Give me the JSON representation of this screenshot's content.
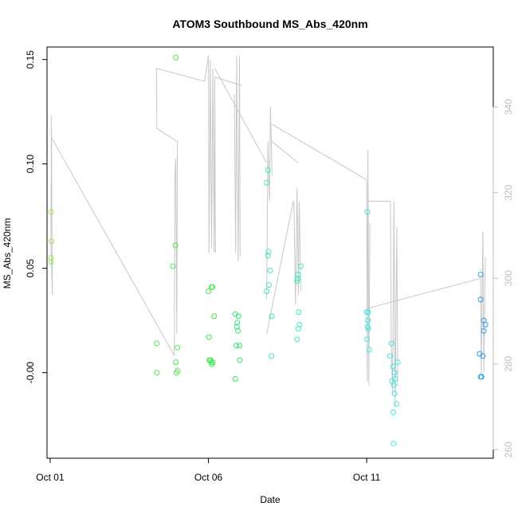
{
  "chart_data": {
    "type": "scatter",
    "title": "ATOM3 Southbound MS_Abs_420nm",
    "xlabel": "Date",
    "ylabel": "MS_Abs_420nm",
    "x_ticks": [
      {
        "label": "Oct 01",
        "day": 1
      },
      {
        "label": "Oct 06",
        "day": 6
      },
      {
        "label": "Oct 11",
        "day": 11
      }
    ],
    "xlim": [
      0.9,
      15.0
    ],
    "ylim": [
      -0.041,
      0.156
    ],
    "y_ticks": [
      "-0.00",
      "0.05",
      "0.10",
      "0.15"
    ],
    "y_tick_values": [
      0.0,
      0.05,
      0.1,
      0.15
    ],
    "right_axis": {
      "ylim": [
        258,
        354
      ],
      "ticks": [
        "260",
        "280",
        "300",
        "320",
        "340"
      ],
      "tick_values": [
        260,
        280,
        300,
        320,
        340
      ],
      "color": "#bebebe"
    },
    "grid": false,
    "legend": "none",
    "series": [
      {
        "color": "#9de84e",
        "points": [
          [
            1.03,
            0.077
          ],
          [
            1.04,
            0.063
          ],
          [
            1.03,
            0.055
          ],
          [
            1.03,
            0.053
          ]
        ]
      },
      {
        "color": "#55e84e",
        "points": [
          [
            4.37,
            0.014
          ],
          [
            4.37,
            0.0
          ],
          [
            4.97,
            0.151
          ],
          [
            4.96,
            0.061
          ],
          [
            4.88,
            0.051
          ],
          [
            4.97,
            0.005
          ],
          [
            5.02,
            0.012
          ],
          [
            4.99,
            0.0
          ],
          [
            5.03,
            0.001
          ]
        ]
      },
      {
        "color": "#3ee84e",
        "points": [
          [
            6.0,
            0.039
          ],
          [
            6.1,
            0.041
          ],
          [
            6.13,
            0.041
          ],
          [
            6.18,
            0.027
          ],
          [
            6.02,
            0.017
          ],
          [
            6.03,
            0.006
          ],
          [
            6.06,
            0.006
          ],
          [
            6.09,
            0.005
          ],
          [
            6.11,
            0.004
          ],
          [
            6.14,
            0.005
          ]
        ]
      },
      {
        "color": "#2ee86e",
        "points": [
          [
            6.85,
            0.028
          ],
          [
            6.95,
            0.027
          ],
          [
            6.91,
            0.024
          ],
          [
            6.9,
            0.022
          ],
          [
            6.93,
            0.02
          ],
          [
            6.88,
            0.013
          ],
          [
            6.98,
            0.013
          ],
          [
            6.99,
            0.006
          ],
          [
            6.85,
            -0.003
          ]
        ]
      },
      {
        "color": "#3ee8a6",
        "points": [
          [
            7.88,
            0.097
          ],
          [
            7.84,
            0.091
          ],
          [
            7.9,
            0.058
          ],
          [
            7.88,
            0.056
          ],
          [
            7.95,
            0.049
          ],
          [
            7.91,
            0.042
          ],
          [
            7.84,
            0.039
          ],
          [
            8.0,
            0.027
          ],
          [
            7.99,
            0.008
          ]
        ]
      },
      {
        "color": "#3ee8c2",
        "points": [
          [
            8.8,
            0.044
          ],
          [
            8.82,
            0.045
          ],
          [
            8.83,
            0.047
          ],
          [
            8.92,
            0.051
          ],
          [
            8.85,
            0.029
          ],
          [
            8.88,
            0.023
          ],
          [
            8.84,
            0.021
          ],
          [
            8.8,
            0.016
          ]
        ]
      },
      {
        "color": "#3ee8e0",
        "points": [
          [
            11.02,
            0.077
          ],
          [
            11.0,
            0.029
          ],
          [
            11.05,
            0.029
          ],
          [
            11.04,
            0.025
          ],
          [
            11.05,
            0.021
          ],
          [
            11.03,
            0.022
          ],
          [
            11.01,
            0.016
          ],
          [
            11.08,
            0.011
          ],
          [
            11.78,
            0.014
          ],
          [
            11.74,
            0.008
          ],
          [
            11.98,
            0.005
          ],
          [
            11.83,
            0.003
          ],
          [
            11.88,
            0.0
          ],
          [
            11.9,
            -0.003
          ],
          [
            11.8,
            -0.004
          ],
          [
            11.86,
            -0.006
          ],
          [
            11.88,
            -0.01
          ],
          [
            11.94,
            -0.015
          ],
          [
            11.84,
            -0.019
          ],
          [
            11.85,
            -0.034
          ]
        ]
      },
      {
        "color": "#2a9ee8",
        "points": [
          [
            14.6,
            0.047
          ],
          [
            14.6,
            0.035
          ],
          [
            14.7,
            0.025
          ],
          [
            14.75,
            0.023
          ],
          [
            14.7,
            0.02
          ],
          [
            14.57,
            0.009
          ],
          [
            14.67,
            0.008
          ],
          [
            14.6,
            -0.002
          ],
          [
            14.63,
            -0.002
          ]
        ]
      }
    ],
    "secondary_series": {
      "color": "#c8c8c8",
      "axis": "right",
      "segments": [
        [
          [
            1.03,
            338
          ],
          [
            1.07,
            296
          ],
          [
            1.02,
            308
          ],
          [
            1.04,
            335
          ],
          [
            1.06,
            305
          ],
          [
            1.03,
            332
          ]
        ],
        [
          [
            1.03,
            333
          ],
          [
            4.92,
            282
          ]
        ],
        [
          [
            4.92,
            282
          ],
          [
            4.94,
            324
          ],
          [
            4.97,
            328
          ],
          [
            5.0,
            287
          ],
          [
            5.02,
            332
          ]
        ],
        [
          [
            5.0,
            332
          ],
          [
            4.37,
            335
          ],
          [
            4.36,
            349
          ],
          [
            5.88,
            346
          ]
        ],
        [
          [
            5.88,
            346
          ],
          [
            6.0,
            352
          ],
          [
            6.02,
            306
          ],
          [
            6.06,
            351
          ],
          [
            6.1,
            307
          ],
          [
            6.14,
            349
          ],
          [
            6.18,
            306
          ],
          [
            6.2,
            347
          ],
          [
            6.22,
            306
          ]
        ],
        [
          [
            6.2,
            347
          ],
          [
            7.05,
            345
          ]
        ],
        [
          [
            6.82,
            343
          ],
          [
            6.86,
            306
          ],
          [
            6.89,
            352
          ],
          [
            6.94,
            304
          ],
          [
            6.98,
            352
          ],
          [
            7.0,
            305
          ]
        ],
        [
          [
            6.2,
            349
          ],
          [
            7.84,
            327
          ]
        ],
        [
          [
            7.84,
            295
          ],
          [
            7.88,
            332
          ],
          [
            7.93,
            318
          ],
          [
            7.96,
            340
          ],
          [
            8.01,
            324
          ]
        ],
        [
          [
            8.0,
            332
          ],
          [
            8.83,
            327
          ]
        ],
        [
          [
            7.84,
            287
          ],
          [
            8.68,
            318
          ]
        ],
        [
          [
            8.7,
            318
          ],
          [
            8.75,
            294
          ],
          [
            8.8,
            321
          ],
          [
            8.84,
            296
          ],
          [
            8.87,
            318
          ],
          [
            8.92,
            297
          ]
        ],
        [
          [
            8.0,
            336
          ],
          [
            11.0,
            323
          ]
        ],
        [
          [
            11.0,
            323
          ],
          [
            11.02,
            276
          ],
          [
            11.04,
            330
          ],
          [
            11.07,
            275
          ],
          [
            11.1,
            313
          ]
        ],
        [
          [
            11.0,
            318
          ],
          [
            11.75,
            318
          ]
        ],
        [
          [
            11.75,
            318
          ],
          [
            11.78,
            283
          ],
          [
            11.82,
            273
          ],
          [
            11.86,
            318
          ],
          [
            11.9,
            270
          ],
          [
            11.95,
            312
          ],
          [
            11.98,
            275
          ]
        ],
        [
          [
            11.03,
            293
          ],
          [
            14.6,
            300
          ]
        ],
        [
          [
            14.6,
            300
          ],
          [
            14.62,
            277
          ],
          [
            14.67,
            311
          ],
          [
            14.7,
            278
          ],
          [
            14.75,
            305
          ]
        ]
      ]
    }
  }
}
